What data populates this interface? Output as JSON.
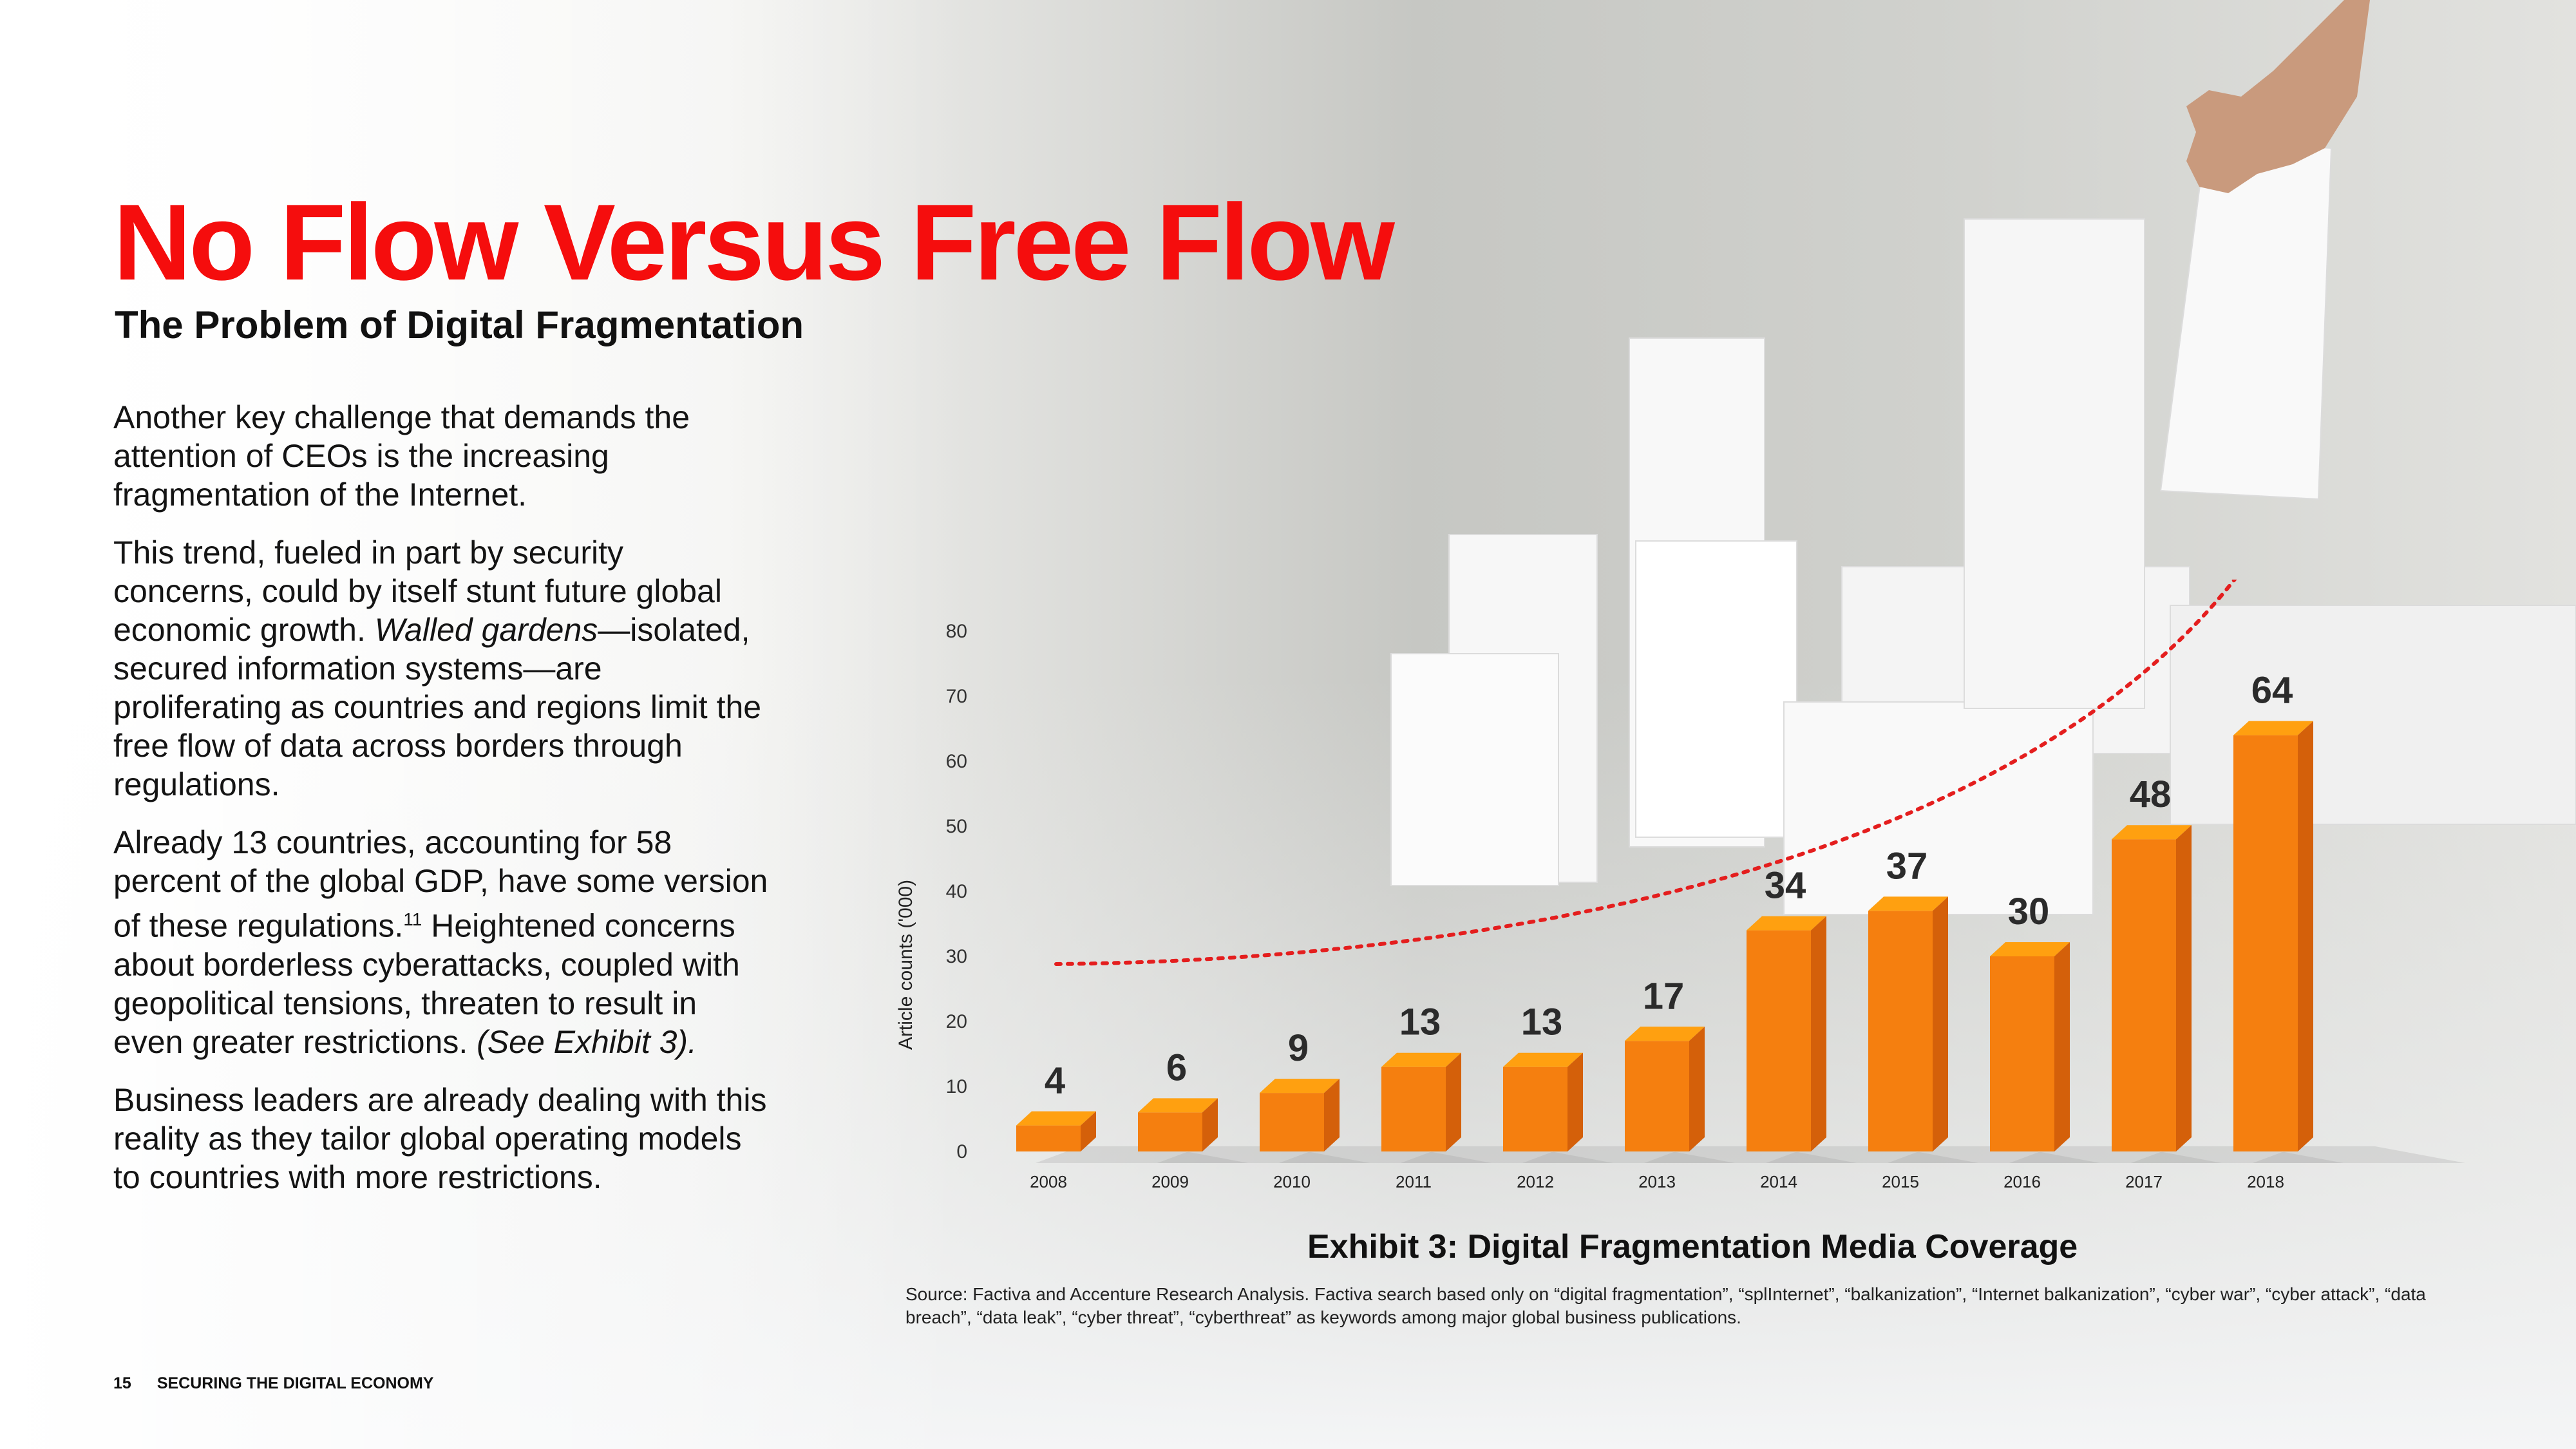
{
  "page": {
    "title": "No Flow Versus Free Flow",
    "subtitle": "The Problem of Digital Fragmentation",
    "p1": "Another key challenge that demands the attention of CEOs is the increasing fragmentation of the Internet.",
    "p2_a": "This trend, fueled in part by security concerns, could by itself stunt future global economic growth. ",
    "p2_italic": "Walled gardens",
    "p2_b": "—isolated, secured information systems—are proliferating as countries and regions limit the free flow of data across borders through regulations.",
    "p3_a": "Already 13 countries, accounting for 58 percent of the global GDP, have some version of these regulations.",
    "p3_sup": "11",
    "p3_b": " Heightened concerns about borderless cyberattacks, coupled with geopolitical tensions, threaten to result in even greater restrictions. ",
    "p3_italic": "(See Exhibit 3).",
    "p4": "Business leaders are already dealing with this reality as they tailor global operating models to countries with more restrictions.",
    "page_number": "15",
    "footer_text": "SECURING THE DIGITAL ECONOMY",
    "exhibit_title": "Exhibit 3: Digital Fragmentation Media Coverage",
    "source": "Source: Factiva and Accenture Research Analysis. Factiva search based only on “digital fragmentation”, “splInternet”, “balkanization”, “Internet balkanization”, “cyber war”, “cyber attack”, “data breach”, “data leak”, “cyber threat”, “cyberthreat” as keywords among major global business publications."
  },
  "colors": {
    "title_red": "#f50d0d",
    "bar_front": "#f57f0f",
    "bar_top": "#ffa010",
    "bar_side": "#d4600a",
    "trend_line": "#e41e1e"
  },
  "chart_data": {
    "type": "bar",
    "categories": [
      "2008",
      "2009",
      "2010",
      "2011",
      "2012",
      "2013",
      "2014",
      "2015",
      "2016",
      "2017",
      "2018"
    ],
    "values": [
      4,
      6,
      9,
      13,
      13,
      17,
      34,
      37,
      30,
      48,
      64
    ],
    "ylabel": "Article counts ('000)",
    "yticks": [
      0,
      10,
      20,
      30,
      40,
      50,
      60,
      70,
      80
    ],
    "ylim": [
      0,
      80
    ],
    "grid": false,
    "trend_line": "dotted red curve"
  }
}
